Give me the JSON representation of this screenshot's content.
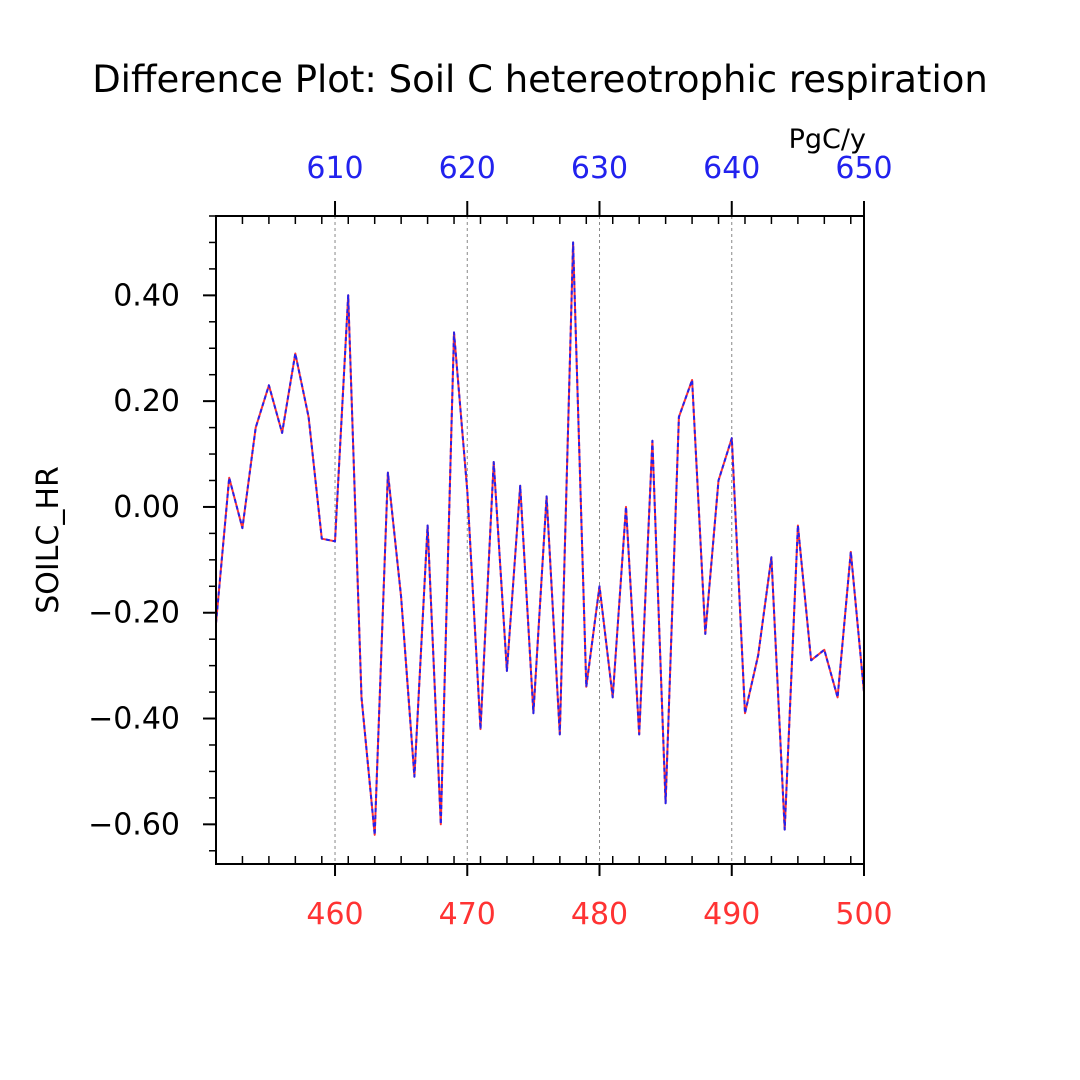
{
  "chart_data": {
    "type": "line",
    "title": "Difference Plot: Soil C hetereotrophic respiration",
    "ylabel": "SOILC_HR",
    "units": "PgC/y",
    "xlim": [
      451,
      500
    ],
    "ylim": [
      -0.675,
      0.55
    ],
    "x_ticks": [
      460,
      470,
      480,
      490,
      500
    ],
    "x_tick_labels": [
      "460",
      "470",
      "480",
      "490",
      "500"
    ],
    "top_tick_labels": [
      "610",
      "620",
      "630",
      "640",
      "650"
    ],
    "y_ticks": [
      0.4,
      0.2,
      0.0,
      -0.2,
      -0.4,
      -0.6
    ],
    "y_tick_labels": [
      "0.40",
      "0.20",
      "0.00",
      "−0.20",
      "−0.40",
      "−0.60"
    ],
    "grid": "vertical dashed at major x ticks",
    "x": [
      451,
      452,
      453,
      454,
      455,
      456,
      457,
      458,
      459,
      460,
      461,
      462,
      463,
      464,
      465,
      466,
      467,
      468,
      469,
      470,
      471,
      472,
      473,
      474,
      475,
      476,
      477,
      478,
      479,
      480,
      481,
      482,
      483,
      484,
      485,
      486,
      487,
      488,
      489,
      490,
      491,
      492,
      493,
      494,
      495,
      496,
      497,
      498,
      499,
      500
    ],
    "series": [
      {
        "color": "#ff3333",
        "dash": "solid",
        "values": [
          -0.22,
          0.055,
          -0.04,
          0.15,
          0.23,
          0.14,
          0.29,
          0.17,
          -0.06,
          -0.065,
          0.4,
          -0.36,
          -0.62,
          0.065,
          -0.17,
          -0.51,
          -0.035,
          -0.6,
          0.33,
          0.03,
          -0.42,
          0.085,
          -0.31,
          0.04,
          -0.39,
          0.02,
          -0.43,
          0.5,
          -0.34,
          -0.15,
          -0.36,
          0.0,
          -0.43,
          0.125,
          -0.56,
          0.17,
          0.24,
          -0.24,
          0.05,
          0.13,
          -0.39,
          -0.28,
          -0.095,
          -0.61,
          -0.035,
          -0.29,
          -0.27,
          -0.36,
          -0.085,
          -0.35
        ]
      },
      {
        "color": "#2222ee",
        "dash": "dashed",
        "values": [
          -0.22,
          0.055,
          -0.04,
          0.15,
          0.23,
          0.14,
          0.29,
          0.17,
          -0.06,
          -0.065,
          0.4,
          -0.36,
          -0.62,
          0.065,
          -0.17,
          -0.51,
          -0.035,
          -0.6,
          0.33,
          0.03,
          -0.42,
          0.085,
          -0.31,
          0.04,
          -0.39,
          0.02,
          -0.43,
          0.5,
          -0.34,
          -0.15,
          -0.36,
          0.0,
          -0.43,
          0.125,
          -0.56,
          0.17,
          0.24,
          -0.24,
          0.05,
          0.13,
          -0.39,
          -0.28,
          -0.095,
          -0.61,
          -0.035,
          -0.29,
          -0.27,
          -0.36,
          -0.085,
          -0.35
        ]
      }
    ],
    "colors": {
      "top_axis": "#2222ee",
      "bottom_axis": "#ff3333",
      "axis": "#000000",
      "text": "#000000"
    }
  }
}
